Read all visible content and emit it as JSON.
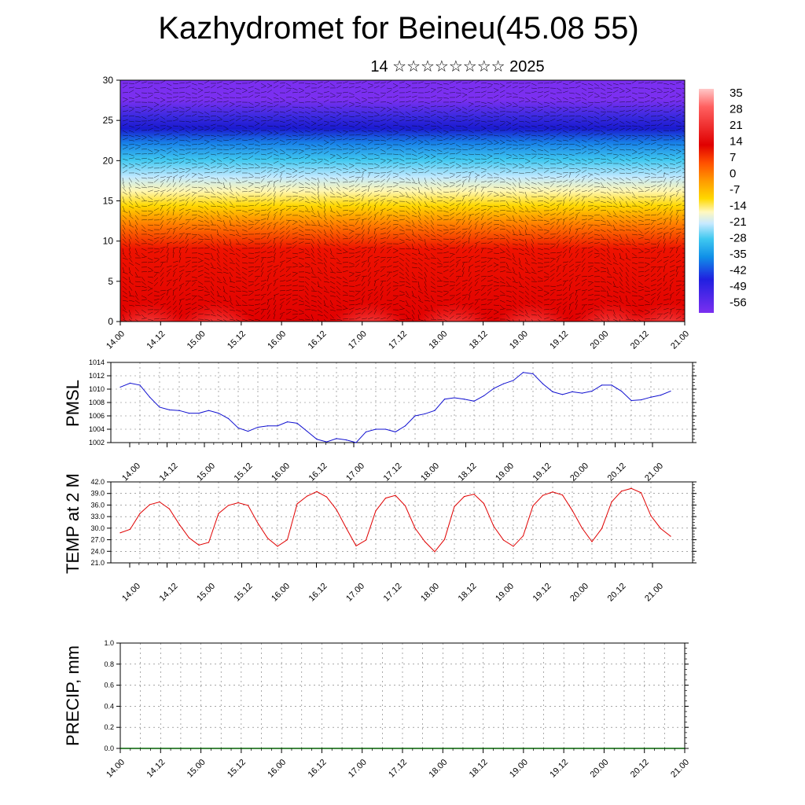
{
  "title": "Kazhydromet for Beineu(45.08 55)",
  "subtitle": "14 ☆☆☆☆☆☆☆☆ 2025",
  "time_labels": [
    "14.00",
    "14.12",
    "15.00",
    "15.12",
    "16.00",
    "16.12",
    "17.00",
    "17.12",
    "18.00",
    "18.12",
    "19.00",
    "19.12",
    "20.00",
    "20.12",
    "21.00"
  ],
  "chart_data": [
    {
      "type": "heatmap",
      "name": "cross-section",
      "ylim": [
        0,
        30
      ],
      "yticks": [
        0,
        5,
        10,
        15,
        20,
        25,
        30
      ],
      "colorbar_labels": [
        "35",
        "28",
        "21",
        "14",
        "7",
        "0",
        "-7",
        "-14",
        "-21",
        "-28",
        "-35",
        "-42",
        "-49",
        "-56"
      ],
      "colors": {
        "warm": "#e00000",
        "hot": "#ff9a9a",
        "mid": "#ffd800",
        "cold": "#3fc8f0",
        "deep": "#1a1ad0",
        "top": "#7b2ff0"
      }
    },
    {
      "type": "line",
      "ylabel": "PMSL",
      "ylim": [
        1002,
        1014
      ],
      "yticks": [
        "1002",
        "1004",
        "1006",
        "1008",
        "1010",
        "1012",
        "1014"
      ],
      "color": "#1010d0",
      "values": [
        1010.3,
        1010.9,
        1010.6,
        1008.8,
        1007.3,
        1006.9,
        1006.8,
        1006.4,
        1006.4,
        1006.8,
        1006.4,
        1005.6,
        1004.2,
        1003.7,
        1004.3,
        1004.5,
        1004.5,
        1005.1,
        1004.9,
        1003.7,
        1002.5,
        1002.1,
        1002.6,
        1002.4,
        1002.0,
        1003.6,
        1004.0,
        1004.0,
        1003.6,
        1004.5,
        1006.0,
        1006.3,
        1006.8,
        1008.5,
        1008.7,
        1008.5,
        1008.2,
        1009.0,
        1010.1,
        1010.8,
        1011.3,
        1012.5,
        1012.3,
        1010.8,
        1009.6,
        1009.2,
        1009.6,
        1009.4,
        1009.7,
        1010.6,
        1010.6,
        1009.7,
        1008.3,
        1008.4,
        1008.8,
        1009.1,
        1009.7
      ]
    },
    {
      "type": "line",
      "ylabel": "TEMP at 2 M",
      "ylim": [
        21,
        42
      ],
      "yticks": [
        "21.0",
        "24.0",
        "27.0",
        "30.0",
        "33.0",
        "36.0",
        "39.0",
        "42.0"
      ],
      "color": "#e00000",
      "values": [
        28.8,
        29.7,
        33.8,
        36.1,
        36.8,
        35.0,
        31.0,
        27.5,
        25.6,
        26.3,
        33.8,
        35.9,
        36.6,
        35.9,
        31.3,
        27.4,
        25.3,
        27.0,
        36.3,
        38.3,
        39.5,
        38.1,
        34.8,
        30.0,
        25.4,
        26.9,
        34.5,
        37.8,
        38.5,
        35.8,
        30.0,
        26.5,
        23.9,
        27.1,
        35.6,
        38.2,
        38.8,
        36.4,
        30.5,
        26.9,
        25.3,
        28.0,
        35.8,
        38.5,
        39.4,
        38.6,
        34.6,
        30.0,
        26.5,
        29.9,
        36.8,
        39.6,
        40.3,
        39.2,
        33.2,
        29.9,
        27.9
      ]
    },
    {
      "type": "line",
      "ylabel": "PRECIP, mm",
      "ylim": [
        0,
        1
      ],
      "yticks": [
        "0.0",
        "0.2",
        "0.4",
        "0.6",
        "0.8",
        "1.0"
      ],
      "color": "#006000",
      "values": [
        0,
        0,
        0,
        0,
        0,
        0,
        0,
        0,
        0,
        0,
        0,
        0,
        0,
        0,
        0,
        0,
        0,
        0,
        0,
        0,
        0,
        0,
        0,
        0,
        0,
        0,
        0,
        0,
        0,
        0,
        0,
        0,
        0,
        0,
        0,
        0,
        0,
        0,
        0,
        0,
        0,
        0,
        0,
        0,
        0,
        0,
        0,
        0,
        0,
        0,
        0,
        0,
        0,
        0,
        0,
        0,
        0
      ]
    }
  ]
}
